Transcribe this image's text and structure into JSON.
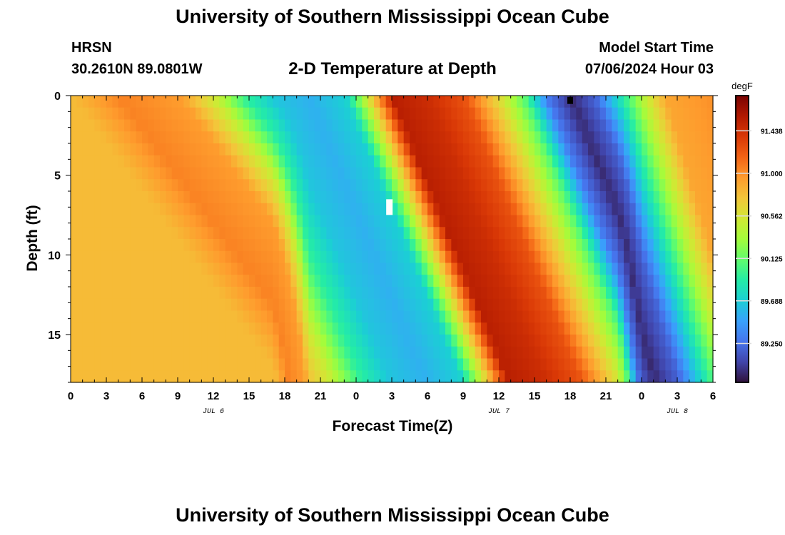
{
  "header": {
    "title": "University of Southern Mississippi Ocean Cube",
    "station": "HRSN",
    "coordinates": "30.2610N  89.0801W",
    "subtitle": "2-D Temperature at Depth",
    "model_start_label": "Model Start Time",
    "model_start_value": "07/06/2024 Hour 03"
  },
  "footer": {
    "title": "University of Southern Mississippi Ocean Cube"
  },
  "chart_data": {
    "type": "heatmap",
    "title": "2-D Temperature at Depth",
    "xlabel": "Forecast Time(Z)",
    "ylabel": "Depth (ft)",
    "x_ticks": [
      "0",
      "3",
      "6",
      "9",
      "12",
      "15",
      "18",
      "21",
      "0",
      "3",
      "6",
      "9",
      "12",
      "15",
      "18",
      "21",
      "0",
      "3",
      "6"
    ],
    "x_tick_hours": [
      0,
      3,
      6,
      9,
      12,
      15,
      18,
      21,
      24,
      27,
      30,
      33,
      36,
      39,
      42,
      45,
      48,
      51,
      54
    ],
    "date_labels": [
      {
        "label": "JUL 6",
        "hour": 12
      },
      {
        "label": "JUL 7",
        "hour": 36
      },
      {
        "label": "JUL 8",
        "hour": 51
      }
    ],
    "xlim": [
      0,
      54
    ],
    "y_ticks": [
      0,
      5,
      10,
      15
    ],
    "ylim": [
      0,
      18
    ],
    "y_inverted": true,
    "colorbar": {
      "unit": "degF",
      "ticks": [
        "91.438",
        "91.000",
        "90.562",
        "90.125",
        "89.688",
        "89.250"
      ],
      "range": [
        88.85,
        91.8
      ],
      "colormap": [
        "#30123b",
        "#4145ab",
        "#4675ed",
        "#39a2fc",
        "#1bcfd4",
        "#24eca6",
        "#61fc6c",
        "#a4fc3b",
        "#d1e834",
        "#f3c63a",
        "#fe9b2d",
        "#f36315",
        "#d93806",
        "#b11901",
        "#7a0403"
      ]
    },
    "temperature_model": {
      "hour_points": [
        0,
        4,
        9,
        12,
        14.5,
        17,
        20,
        23,
        25,
        27,
        30,
        33,
        36,
        38,
        40,
        42,
        44,
        46,
        48,
        50,
        54
      ],
      "surface_degF": [
        90.8,
        91.05,
        90.95,
        90.5,
        89.95,
        89.65,
        89.55,
        89.7,
        90.6,
        91.55,
        91.45,
        91.25,
        90.6,
        90.1,
        89.3,
        88.95,
        89.2,
        89.8,
        90.4,
        90.9,
        91.0
      ],
      "lag_hours_per_ft": [
        1.0,
        1.0,
        1.0,
        1.0,
        1.0,
        1.0,
        0.55,
        0.55,
        0.55,
        0.55,
        0.55,
        0.55,
        0.55,
        0.55,
        0.55,
        0.55,
        0.55,
        0.55,
        0.4,
        0.4,
        0.4
      ]
    },
    "markers": [
      {
        "name": "white-marker",
        "hour": 26.8,
        "depth": 7.0,
        "color": "#ffffff"
      },
      {
        "name": "black-marker",
        "hour": 42.0,
        "depth": 0.3,
        "color": "#000000"
      }
    ]
  }
}
